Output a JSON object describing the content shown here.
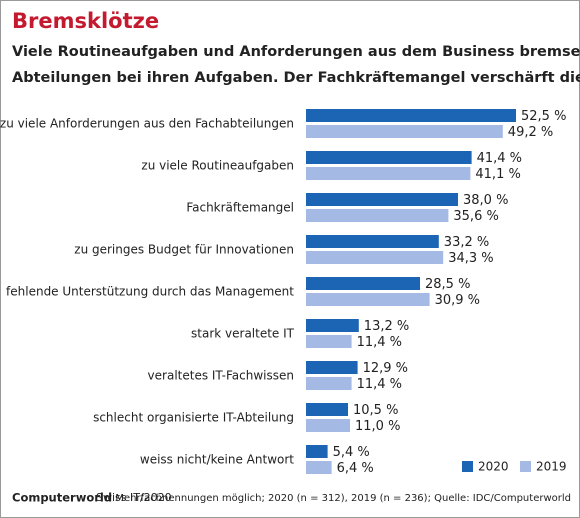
{
  "chart_data": {
    "type": "hbar",
    "title": "Bremsklötze",
    "subtitle": [
      "Viele Routineaufgaben und Anforderungen aus dem Business bremsen IT-",
      "Abteilungen bei ihren Aufgaben. Der Fachkräftemangel verschärft die Lage."
    ],
    "categories": [
      "zu viele Anforderungen aus den Fachabteilungen",
      "zu viele Routineaufgaben",
      "Fachkräftemangel",
      "zu geringes Budget für Innovationen",
      "fehlende Unterstützung durch das Management",
      "stark veraltete IT",
      "veraltetes IT-Fachwissen",
      "schlecht organisierte IT-Abteilung",
      "weiss nicht/keine Antwort"
    ],
    "series": [
      {
        "name": "2020",
        "color": "#1c64b4",
        "values": [
          52.5,
          41.4,
          38.0,
          33.2,
          28.5,
          13.2,
          12.9,
          10.5,
          5.4
        ],
        "value_labels": [
          "52,5 %",
          "41,4 %",
          "38,0 %",
          "33,2 %",
          "28,5 %",
          "13,2 %",
          "12,9 %",
          "10,5 %",
          "5,4 %"
        ]
      },
      {
        "name": "2019",
        "color": "#a4b9e4",
        "values": [
          49.2,
          41.1,
          35.6,
          34.3,
          30.9,
          11.4,
          11.4,
          11.0,
          6.4
        ],
        "value_labels": [
          "49,2 %",
          "41,1 %",
          "35,6 %",
          "34,3 %",
          "30,9 %",
          "11,4 %",
          "11,4 %",
          "11,0 %",
          "6,4 %"
        ]
      }
    ],
    "legend": "bottom-right",
    "brand": "Computerworld",
    "edition": "Swiss IT/2020",
    "note": "Mehrfachnennungen möglich; 2020 (n = 312), 2019 (n = 236); Quelle: IDC/Computerworld"
  }
}
